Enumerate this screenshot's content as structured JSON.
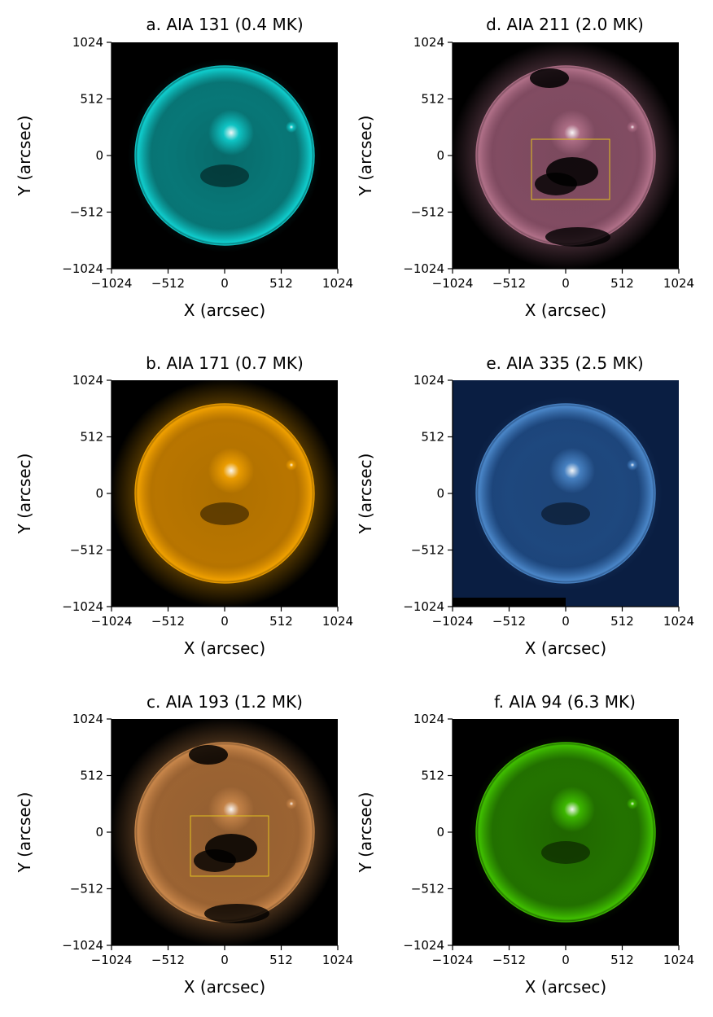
{
  "figure": {
    "x_label": "X (arcsec)",
    "y_label": "Y (arcsec)",
    "ticks": [
      "−1024",
      "−512",
      "0",
      "512",
      "1024"
    ],
    "tick_values": [
      -1024,
      -512,
      0,
      512,
      1024
    ]
  },
  "panels": [
    {
      "id": "a",
      "title": "a. AIA 131 (0.4 MK)",
      "color": "#0fcdcd",
      "glow": "#0a8f8f",
      "style": "quiet"
    },
    {
      "id": "b",
      "title": "b. AIA 171 (0.7 MK)",
      "color": "#f0a000",
      "glow": "#c77d00",
      "style": "corona"
    },
    {
      "id": "c",
      "title": "c. AIA 193 (1.2 MK)",
      "color": "#c8864a",
      "glow": "#a86a35",
      "style": "hole",
      "box": true
    },
    {
      "id": "d",
      "title": "d. AIA 211 (2.0 MK)",
      "color": "#b07088",
      "glow": "#8a4f68",
      "style": "hole",
      "box": true
    },
    {
      "id": "e",
      "title": "e. AIA 335 (2.5 MK)",
      "color": "#4a86c8",
      "glow": "#1f4c86",
      "style": "blue"
    },
    {
      "id": "f",
      "title": "f. AIA 94 (6.3 MK)",
      "color": "#3fbf00",
      "glow": "#2a8a00",
      "style": "quiet"
    }
  ]
}
